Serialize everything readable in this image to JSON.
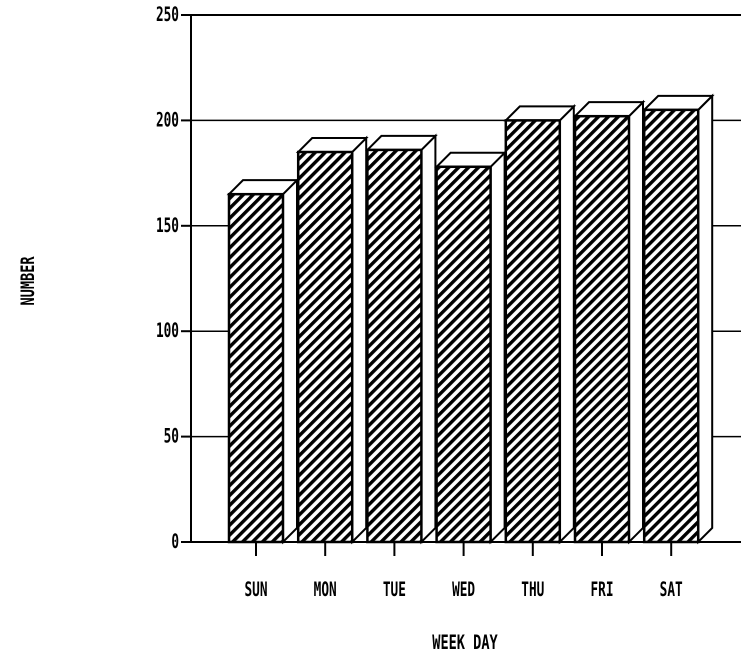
{
  "chart_data": {
    "type": "bar",
    "categories": [
      "SUN",
      "MON",
      "TUE",
      "WED",
      "THU",
      "FRI",
      "SAT"
    ],
    "values": [
      165,
      185,
      186,
      178,
      200,
      202,
      205
    ],
    "xlabel": "WEEK DAY",
    "ylabel": "NUMBER",
    "ylim": [
      0,
      250
    ],
    "yticks": [
      0,
      50,
      100,
      150,
      200,
      250
    ],
    "grid": true,
    "style": "3d hatched bars",
    "colors": {
      "bar_fill": "#ffffff",
      "hatch": "#000000",
      "outline": "#000000"
    }
  }
}
